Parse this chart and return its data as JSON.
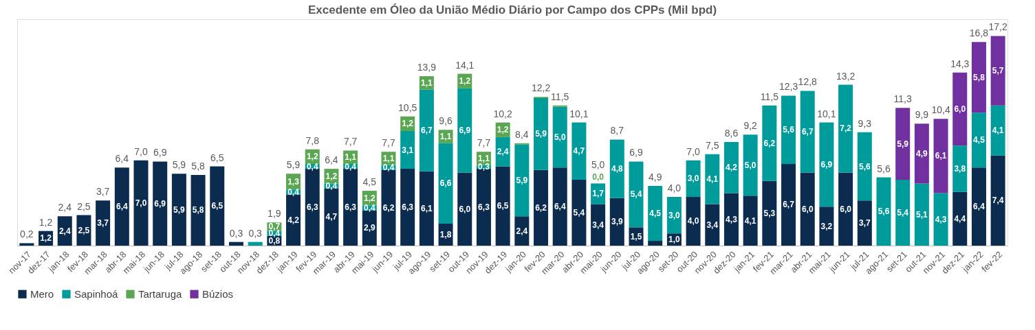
{
  "chart_data": {
    "type": "bar",
    "stacked": true,
    "title": "Excedente em Óleo da União Médio Diário por Campo dos CPPs (Mil bpd)",
    "legend": "bottom",
    "grid": false,
    "categories": [
      "nov-17",
      "dez-17",
      "jan-18",
      "fev-18",
      "mar-18",
      "abr-18",
      "mai-18",
      "jun-18",
      "jul-18",
      "ago-18",
      "set-18",
      "out-18",
      "nov-18",
      "dez-18",
      "jan-19",
      "fev-19",
      "mar-19",
      "abr-19",
      "mai-19",
      "jun-19",
      "jul-19",
      "ago-19",
      "set-19",
      "out-19",
      "nov-19",
      "dez-19",
      "jan-20",
      "fev-20",
      "mar-20",
      "abr-20",
      "mai-20",
      "jun-20",
      "jul-20",
      "ago-20",
      "set-20",
      "out-20",
      "nov-20",
      "dez-20",
      "jan-21",
      "fev-21",
      "mar-21",
      "abr-21",
      "mai-21",
      "jun-21",
      "jul-21",
      "ago-21",
      "set-21",
      "out-21",
      "nov-21",
      "dez-21",
      "jan-22",
      "fev-22"
    ],
    "series": [
      {
        "name": "Mero",
        "color": "#0b2b4f",
        "values": [
          0.2,
          1.2,
          2.4,
          2.5,
          3.7,
          6.4,
          7.0,
          6.9,
          5.9,
          5.8,
          6.5,
          0.3,
          null,
          0.8,
          4.2,
          6.3,
          4.7,
          6.3,
          2.9,
          6.2,
          6.3,
          6.1,
          1.8,
          6.0,
          6.3,
          6.5,
          2.4,
          6.2,
          6.4,
          5.4,
          3.4,
          3.9,
          1.5,
          0.4,
          1.0,
          4.0,
          3.4,
          4.3,
          4.1,
          5.3,
          6.7,
          6.0,
          3.2,
          6.0,
          3.7,
          null,
          null,
          null,
          null,
          4.4,
          6.4,
          7.4
        ],
        "value_labels": [
          null,
          "1,2",
          "2,4",
          "2,5",
          "3,7",
          "6,4",
          "7,0",
          "6,9",
          "5,9",
          "5,8",
          "6,5",
          null,
          null,
          "0,8",
          "4,2",
          "6,3",
          "4,7",
          "6,3",
          "2,9",
          "6,2",
          "6,3",
          "6,1",
          "1,8",
          "6,0",
          "6,3",
          "6,5",
          "2,4",
          "6,2",
          "6,4",
          "5,4",
          "3,4",
          "3,9",
          "1,5",
          null,
          "1,0",
          "4,0",
          "3,4",
          "4,3",
          "4,1",
          "5,3",
          "6,7",
          "6,0",
          "3,2",
          "6,0",
          "3,7",
          null,
          null,
          null,
          null,
          "4,4",
          "6,4",
          "7,4"
        ]
      },
      {
        "name": "Sapinhoá",
        "color": "#009b9b",
        "values": [
          null,
          null,
          null,
          null,
          null,
          null,
          null,
          null,
          null,
          null,
          null,
          null,
          0.3,
          0.4,
          0.4,
          0.4,
          0.4,
          0.4,
          0.4,
          0.4,
          3.1,
          6.7,
          6.6,
          6.9,
          0.3,
          2.4,
          5.9,
          5.9,
          5.0,
          4.7,
          1.7,
          4.8,
          5.4,
          4.5,
          3.0,
          3.0,
          4.1,
          4.2,
          5.0,
          6.2,
          5.6,
          6.7,
          6.9,
          7.2,
          5.6,
          5.6,
          5.4,
          5.1,
          4.3,
          3.8,
          4.5,
          4.1
        ],
        "value_labels": [
          null,
          null,
          null,
          null,
          null,
          null,
          null,
          null,
          null,
          null,
          null,
          null,
          null,
          "0,4",
          "0,4",
          "0,4",
          "0,4",
          "0,4",
          "0,4",
          "0,4",
          "3,1",
          "6,7",
          "6,6",
          "6,9",
          "0,3",
          "2,4",
          "5,9",
          "5,9",
          "5,0",
          "4,7",
          "1,7",
          "4,8",
          "5,4",
          "4,5",
          "3,0",
          "3,0",
          "4,1",
          "4,2",
          "5,0",
          "6,2",
          "5,6",
          "6,7",
          "6,9",
          "7,2",
          "5,6",
          "5,6",
          "5,4",
          "5,1",
          "4,3",
          "3,8",
          "4,5",
          "4,1"
        ]
      },
      {
        "name": "Tartaruga",
        "color": "#5aa652",
        "values": [
          null,
          null,
          null,
          null,
          null,
          null,
          null,
          null,
          null,
          null,
          null,
          null,
          null,
          0.7,
          1.3,
          1.2,
          1.2,
          1.1,
          1.2,
          1.1,
          1.2,
          1.1,
          1.1,
          1.2,
          1.1,
          1.2,
          0.1,
          0.1,
          0.1,
          null,
          0.0,
          null,
          null,
          null,
          null,
          null,
          null,
          null,
          null,
          null,
          null,
          null,
          null,
          null,
          null,
          null,
          null,
          null,
          null,
          null,
          null,
          null
        ],
        "value_labels": [
          null,
          null,
          null,
          null,
          null,
          null,
          null,
          null,
          null,
          null,
          null,
          null,
          null,
          "0,7",
          "1,3",
          "1,2",
          "1,2",
          "1,1",
          "1,2",
          "1,1",
          "1,2",
          "1,1",
          "1,1",
          "1,2",
          "1,1",
          "1,2",
          null,
          null,
          null,
          null,
          "0,0",
          null,
          null,
          null,
          null,
          null,
          null,
          null,
          null,
          null,
          null,
          null,
          null,
          null,
          null,
          null,
          null,
          null,
          null,
          null,
          null,
          null
        ]
      },
      {
        "name": "Búzios",
        "color": "#7030a0",
        "values": [
          null,
          null,
          null,
          null,
          null,
          null,
          null,
          null,
          null,
          null,
          null,
          null,
          null,
          null,
          null,
          null,
          null,
          null,
          null,
          null,
          null,
          null,
          null,
          null,
          null,
          null,
          null,
          null,
          null,
          null,
          null,
          null,
          null,
          null,
          null,
          null,
          null,
          null,
          null,
          null,
          null,
          null,
          null,
          null,
          null,
          null,
          5.9,
          4.9,
          6.1,
          6.0,
          5.8,
          5.7
        ],
        "value_labels": [
          null,
          null,
          null,
          null,
          null,
          null,
          null,
          null,
          null,
          null,
          null,
          null,
          null,
          null,
          null,
          null,
          null,
          null,
          null,
          null,
          null,
          null,
          null,
          null,
          null,
          null,
          null,
          null,
          null,
          null,
          null,
          null,
          null,
          null,
          null,
          null,
          null,
          null,
          null,
          null,
          null,
          null,
          null,
          null,
          null,
          null,
          "5,9",
          "4,9",
          "6,1",
          "6,0",
          "5,8",
          "5,7"
        ]
      }
    ],
    "totals": [
      "0,2",
      "1,2",
      "2,4",
      "2,5",
      "3,7",
      "6,4",
      "7,0",
      "6,9",
      "5,9",
      "5,8",
      "6,5",
      "0,3",
      "0,3",
      "1,9",
      "5,9",
      "7,8",
      "6,4",
      "7,7",
      "4,5",
      "7,7",
      "10,5",
      "13,9",
      "9,6",
      "14,1",
      "7,7",
      "10,2",
      "8,4",
      "12,2",
      "11,5",
      "10,1",
      "5,0",
      "8,7",
      "6,9",
      "4,9",
      "4,0",
      "7,0",
      "7,5",
      "8,6",
      "9,2",
      "11,5",
      "12,3",
      "12,8",
      "10,1",
      "13,2",
      "9,3",
      "5,6",
      "11,3",
      "9,9",
      "10,4",
      "14,3",
      "16,8",
      "17,2"
    ]
  }
}
